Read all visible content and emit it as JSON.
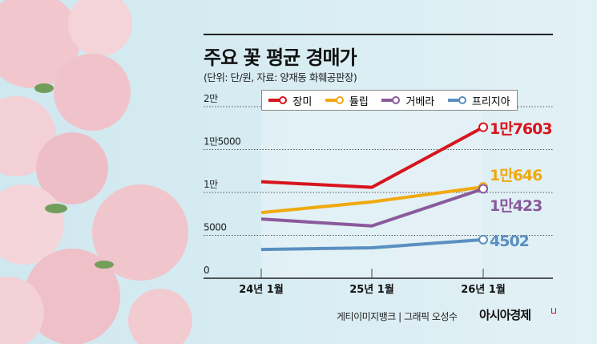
{
  "header": {
    "title": "주요 꽃 평균 경매가",
    "subtitle": "(단위: 단/원, 자료: 양재동 화훼공판장)"
  },
  "footer": {
    "credit": "게티이미지뱅크 | 그래픽 오성수",
    "logo": "아시아경제"
  },
  "chart_data": {
    "type": "line",
    "title": "주요 꽃 평균 경매가",
    "categories": [
      "24년 1월",
      "25년 1월",
      "26년 1월"
    ],
    "ylim": [
      0,
      20000
    ],
    "yticks": [
      0,
      5000,
      10000,
      15000,
      20000
    ],
    "ytick_labels": [
      "0",
      "5000",
      "1만",
      "1만5000",
      "2만"
    ],
    "grid": true,
    "legend": "top",
    "series": [
      {
        "name": "장미",
        "color": "#d8141d",
        "values": [
          11250,
          10600,
          17603
        ],
        "end_label": "1만7603"
      },
      {
        "name": "튤립",
        "color": "#f0a90f",
        "values": [
          7650,
          8900,
          10646
        ],
        "end_label": "1만646"
      },
      {
        "name": "거베라",
        "color": "#8a5a9c",
        "values": [
          6900,
          6100,
          10423
        ],
        "end_label": "1만423"
      },
      {
        "name": "프리지아",
        "color": "#5a8fc0",
        "values": [
          3350,
          3550,
          4502
        ],
        "end_label": "4502"
      }
    ]
  }
}
